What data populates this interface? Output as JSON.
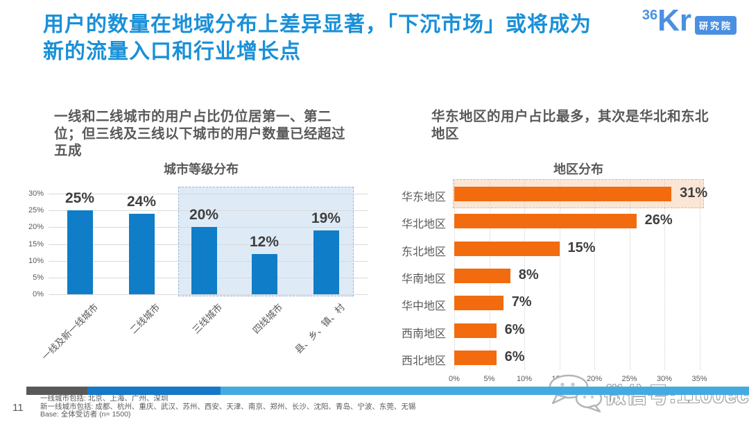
{
  "header": {
    "title_line1": "用户的数量在地域分布上差异显著，「下沉市场」或将成为",
    "title_line2": "新的流量入口和行业增长点",
    "logo": {
      "num": "36",
      "kr": "Kr",
      "badge": "研究院"
    }
  },
  "left_panel": {
    "subtitle": "一线和二线城市的用户占比仍位居第一、第二位；但三线及三线以下城市的用户数量已经超过五成",
    "chart_title": "城市等级分布"
  },
  "right_panel": {
    "subtitle": "华东地区的用户占比最多，其次是华北和东北地区",
    "chart_title": "地区分布"
  },
  "chart_data": [
    {
      "id": "city-tier-distribution",
      "type": "bar",
      "orientation": "vertical",
      "title": "城市等级分布",
      "categories": [
        "一线及新一线城市",
        "二线城市",
        "三线城市",
        "四线城市",
        "县、乡、镇、村"
      ],
      "values": [
        25,
        24,
        20,
        12,
        19
      ],
      "value_labels": [
        "25%",
        "24%",
        "20%",
        "12%",
        "19%"
      ],
      "ylim": [
        0,
        30
      ],
      "ytick_step": 5,
      "ytick_labels": [
        "0%",
        "5%",
        "10%",
        "15%",
        "20%",
        "25%",
        "30%"
      ],
      "grid": true,
      "bar_color": "#0F7DC8",
      "highlight": {
        "categories": [
          "三线城市",
          "四线城市",
          "县、乡、镇、村"
        ],
        "fill": "#DEEBF7",
        "border": "#97B6D5"
      }
    },
    {
      "id": "region-distribution",
      "type": "bar",
      "orientation": "horizontal",
      "title": "地区分布",
      "categories": [
        "华东地区",
        "华北地区",
        "东北地区",
        "华南地区",
        "华中地区",
        "西南地区",
        "西北地区"
      ],
      "values": [
        31,
        26,
        15,
        8,
        7,
        6,
        6
      ],
      "value_labels": [
        "31%",
        "26%",
        "15%",
        "8%",
        "7%",
        "6%",
        "6%"
      ],
      "xlim": [
        0,
        35
      ],
      "xtick_step": 5,
      "xtick_labels": [
        "0%",
        "5%",
        "10%",
        "15%",
        "20%",
        "25%",
        "30%",
        "35%"
      ],
      "grid": true,
      "bar_color": "#F26B0E",
      "highlight": {
        "categories": [
          "华东地区"
        ],
        "fill": "#FBE5D5",
        "border": "#EFB288"
      }
    }
  ],
  "footer": {
    "page_number": "11",
    "notes": [
      "一线城市包括: 北京、上海、广州、深圳",
      "新一线城市包括: 成都、杭州、重庆、武汉、苏州、西安、天津、南京、郑州、长沙、沈阳、青岛、宁波、东莞、无锡",
      "Base: 全体受访者 (n= 1500)"
    ]
  },
  "watermark": {
    "text": "微信号:1100ec",
    "icon": "wechat-icon"
  },
  "colors": {
    "title_blue": "#1990D8",
    "logo_blue": "#4A90E2",
    "text_dark": "#595959",
    "grid": "#D9D9D9",
    "bar_blue": "#0F7DC8",
    "bar_orange": "#F26B0E",
    "footer_segments": [
      "#595959",
      "#1679C8",
      "#45AADF"
    ]
  }
}
